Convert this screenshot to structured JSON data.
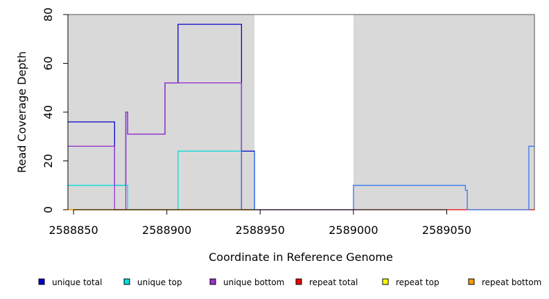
{
  "chart_data": {
    "type": "line",
    "xlabel": "Coordinate in Reference Genome",
    "ylabel": "Read Coverage Depth",
    "xlim": [
      2588847,
      2589097
    ],
    "ylim": [
      0,
      80
    ],
    "x_ticks": [
      2588850,
      2588900,
      2588950,
      2589000,
      2589050
    ],
    "x_tick_labels": [
      "2588850",
      "2588900",
      "2588950",
      "2589000",
      "2589050"
    ],
    "y_ticks": [
      0,
      20,
      40,
      60,
      80
    ],
    "y_tick_labels": [
      "0",
      "20",
      "40",
      "60",
      "80"
    ],
    "grid": false,
    "legend_position": "bottom",
    "shaded_regions": [
      {
        "x0": 2588847,
        "x1": 2588947,
        "color": "#d9d9d9"
      },
      {
        "x0": 2589000,
        "x1": 2589097,
        "color": "#d9d9d9"
      }
    ],
    "series": [
      {
        "name": "unique total",
        "color": "#0000cc",
        "points": [
          [
            2588847,
            36
          ],
          [
            2588872,
            36
          ],
          [
            2588872,
            10
          ],
          [
            2588878,
            10
          ],
          [
            2588878,
            40
          ],
          [
            2588879,
            40
          ],
          [
            2588879,
            31
          ],
          [
            2588899,
            31
          ],
          [
            2588899,
            52
          ],
          [
            2588906,
            52
          ],
          [
            2588906,
            76
          ],
          [
            2588940,
            76
          ],
          [
            2588940,
            24
          ],
          [
            2588947,
            24
          ],
          [
            2588947,
            0
          ]
        ]
      },
      {
        "name": "unique top",
        "color": "#00dddd",
        "points": [
          [
            2588847,
            10
          ],
          [
            2588879,
            10
          ],
          [
            2588879,
            0
          ],
          [
            2588906,
            0
          ],
          [
            2588906,
            24
          ],
          [
            2588940,
            24
          ],
          [
            2588940,
            0
          ],
          [
            2588947,
            0
          ]
        ]
      },
      {
        "name": "unique bottom",
        "color": "#9933cc",
        "points": [
          [
            2588847,
            26
          ],
          [
            2588872,
            26
          ],
          [
            2588872,
            0
          ],
          [
            2588878,
            0
          ],
          [
            2588878,
            40
          ],
          [
            2588879,
            40
          ],
          [
            2588879,
            31
          ],
          [
            2588899,
            31
          ],
          [
            2588899,
            52
          ],
          [
            2588940,
            52
          ],
          [
            2588940,
            0
          ],
          [
            2588947,
            0
          ]
        ]
      },
      {
        "name": "repeat total",
        "color": "#ee0000",
        "points": [
          [
            2588847,
            0
          ],
          [
            2589097,
            0
          ]
        ]
      },
      {
        "name": "repeat top",
        "color": "#ffff00",
        "points": [
          [
            2588847,
            0
          ],
          [
            2588947,
            0
          ]
        ]
      },
      {
        "name": "repeat bottom",
        "color": "#ff9900",
        "points": [
          [
            2588847,
            0
          ],
          [
            2588947,
            0
          ]
        ]
      },
      {
        "name": "",
        "color": "#3377ee",
        "points": [
          [
            2588947,
            24
          ],
          [
            2588947,
            0
          ],
          [
            2589000,
            0
          ],
          [
            2589000,
            10
          ],
          [
            2589060,
            10
          ],
          [
            2589060,
            8
          ],
          [
            2589061,
            8
          ],
          [
            2589061,
            0
          ],
          [
            2589094,
            0
          ],
          [
            2589094,
            26
          ],
          [
            2589097,
            26
          ]
        ]
      }
    ]
  },
  "legend": [
    {
      "label": "unique total",
      "color": "#0000cc"
    },
    {
      "label": "unique top",
      "color": "#00dddd"
    },
    {
      "label": "unique bottom",
      "color": "#9933cc"
    },
    {
      "label": "repeat total",
      "color": "#ee0000"
    },
    {
      "label": "repeat top",
      "color": "#ffff00"
    },
    {
      "label": "repeat bottom",
      "color": "#ff9900"
    }
  ]
}
